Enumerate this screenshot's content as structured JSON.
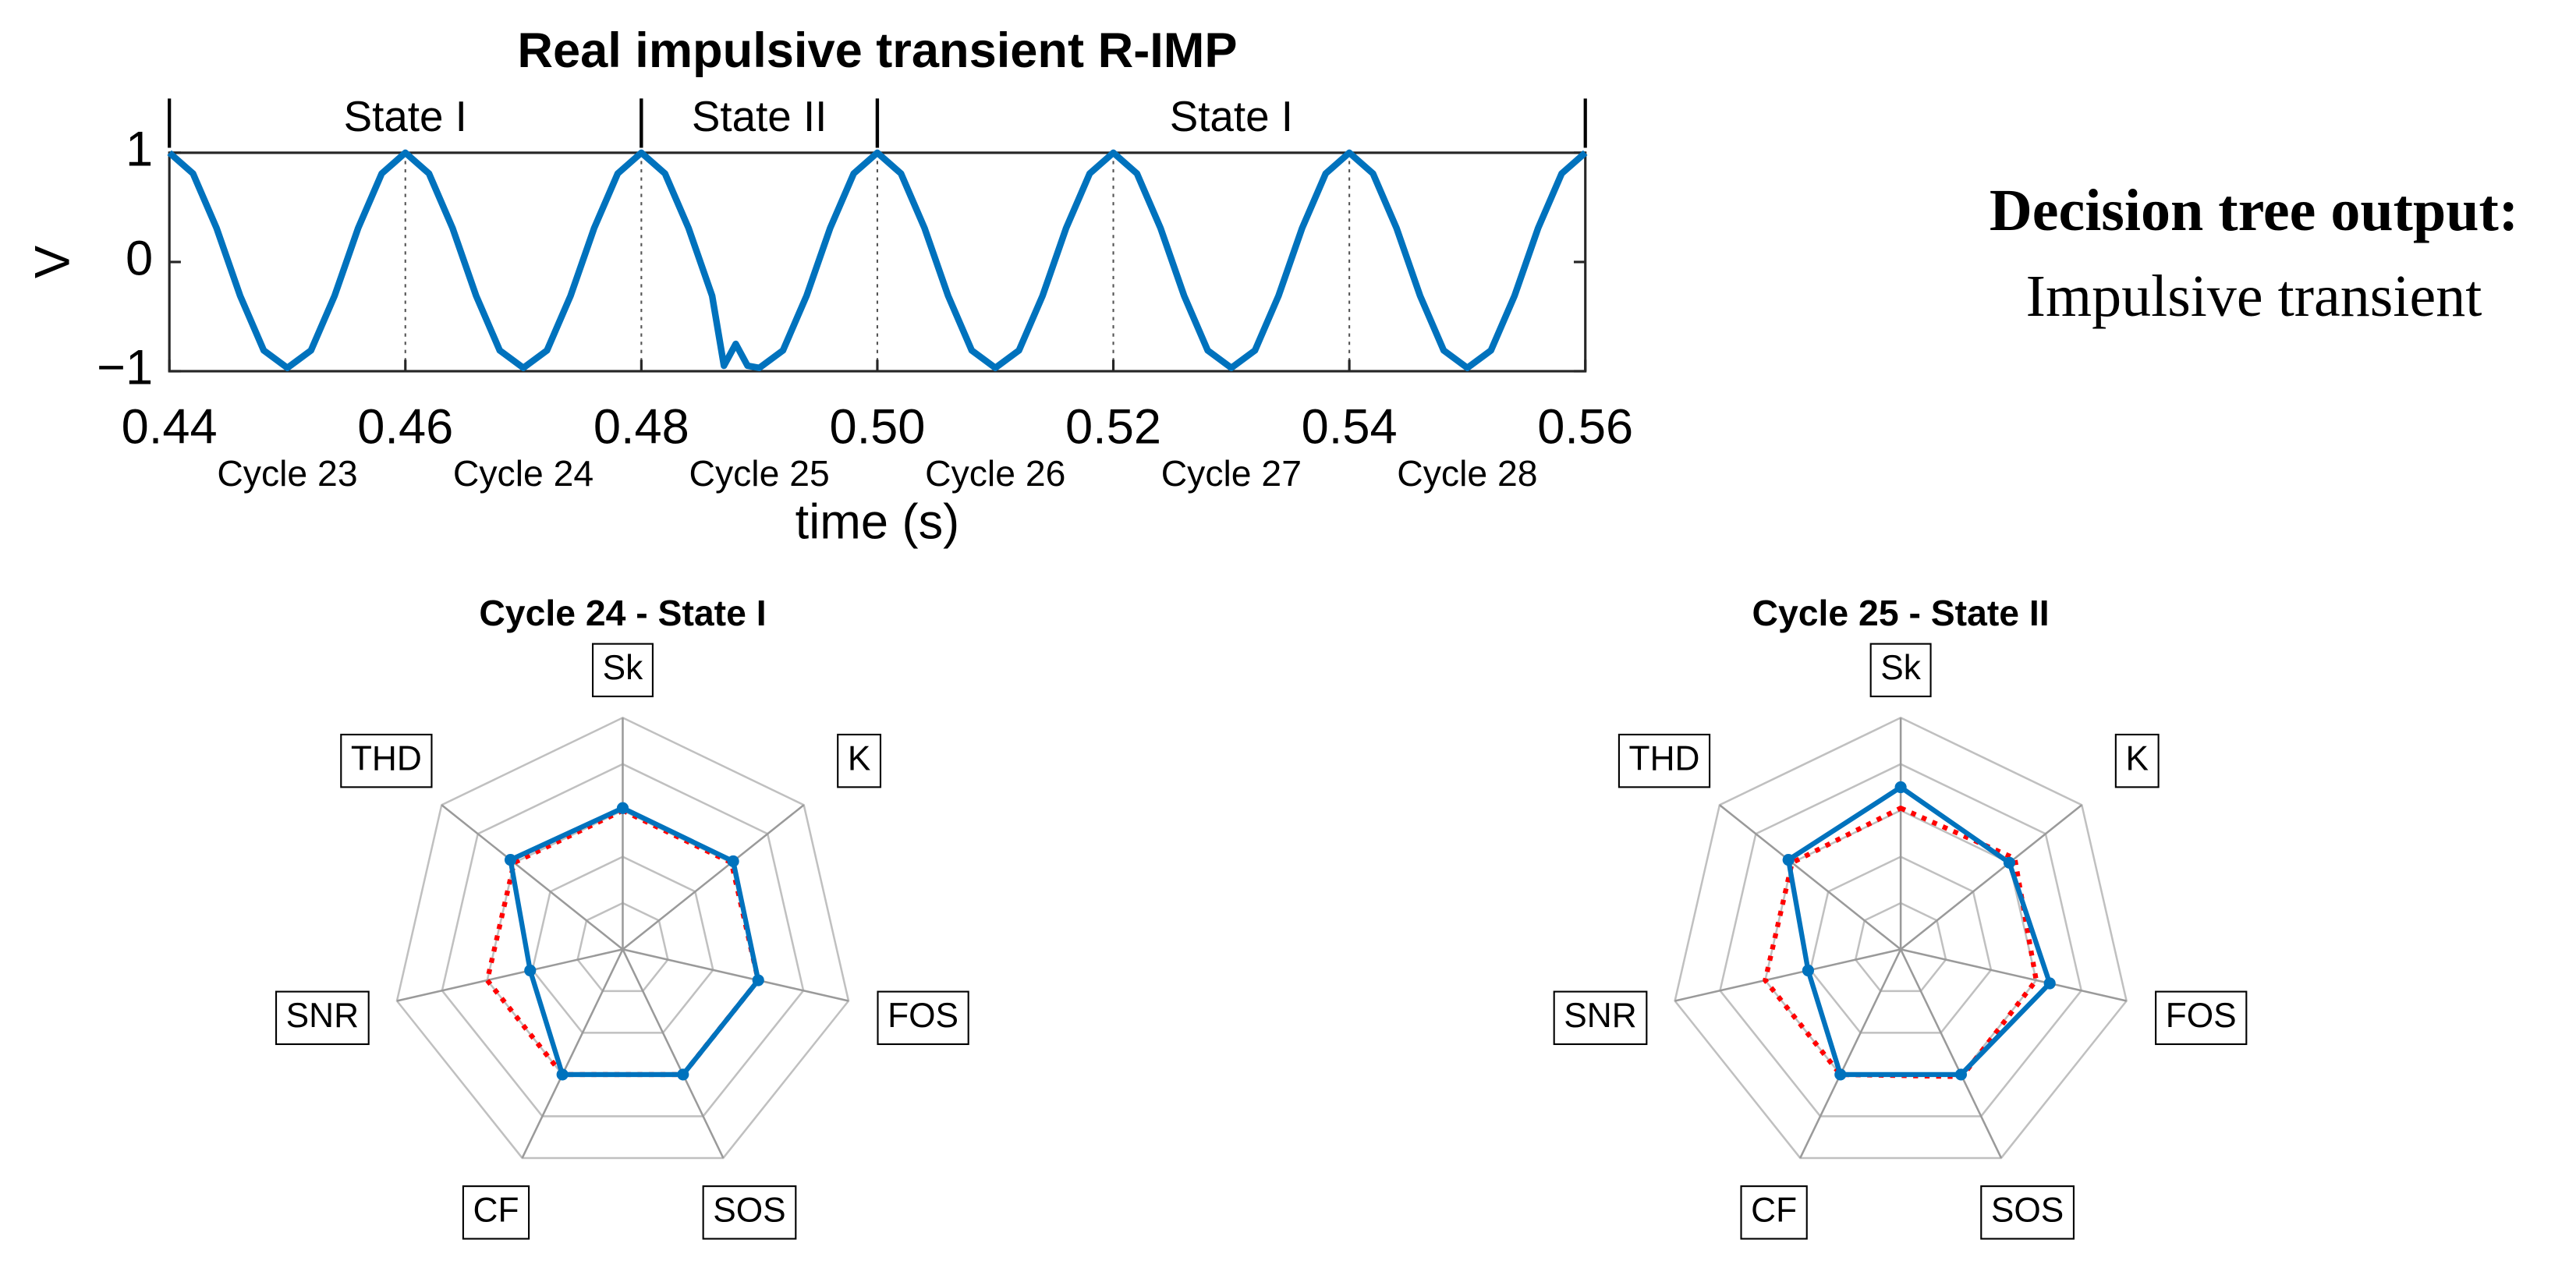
{
  "chart_data": [
    {
      "type": "line",
      "title": "Real impulsive transient R-IMP",
      "x_label": "time (s)",
      "y_label": "V",
      "x": [
        0.44,
        0.442,
        0.444,
        0.446,
        0.448,
        0.45,
        0.452,
        0.454,
        0.456,
        0.458,
        0.46,
        0.462,
        0.464,
        0.466,
        0.468,
        0.47,
        0.472,
        0.474,
        0.476,
        0.478,
        0.48,
        0.482,
        0.484,
        0.486,
        0.487,
        0.488,
        0.489,
        0.49,
        0.492,
        0.494,
        0.496,
        0.498,
        0.5,
        0.502,
        0.504,
        0.506,
        0.508,
        0.51,
        0.512,
        0.514,
        0.516,
        0.518,
        0.52,
        0.522,
        0.524,
        0.526,
        0.528,
        0.53,
        0.532,
        0.534,
        0.536,
        0.538,
        0.54,
        0.542,
        0.544,
        0.546,
        0.548,
        0.55,
        0.552,
        0.554,
        0.556,
        0.558,
        0.56
      ],
      "values": [
        1,
        0.81,
        0.31,
        -0.31,
        -0.81,
        -0.97,
        -0.81,
        -0.31,
        0.31,
        0.81,
        1,
        0.81,
        0.31,
        -0.31,
        -0.81,
        -0.97,
        -0.81,
        -0.31,
        0.31,
        0.81,
        1,
        0.81,
        0.31,
        -0.31,
        -0.95,
        -0.75,
        -0.95,
        -0.97,
        -0.81,
        -0.31,
        0.31,
        0.81,
        1,
        0.81,
        0.31,
        -0.31,
        -0.81,
        -0.97,
        -0.81,
        -0.31,
        0.31,
        0.81,
        1,
        0.81,
        0.31,
        -0.31,
        -0.81,
        -0.97,
        -0.81,
        -0.31,
        0.31,
        0.81,
        1,
        0.81,
        0.31,
        -0.31,
        -0.81,
        -0.97,
        -0.81,
        -0.31,
        0.31,
        0.81,
        1
      ],
      "color": "#0072BD",
      "xlim": [
        0.44,
        0.56
      ],
      "xticks": [
        0.44,
        0.46,
        0.48,
        {
          "value": 0.5,
          "label": "0.50"
        },
        0.52,
        0.54,
        0.56
      ],
      "ylim": [
        -1,
        1
      ],
      "yticks": [
        {
          "value": -1,
          "label": "−1"
        },
        0,
        1
      ],
      "xgrid": true,
      "states": [
        {
          "label": "State I",
          "from": 0.44,
          "to": 0.48
        },
        {
          "label": "State II",
          "from": 0.48,
          "to": 0.5
        },
        {
          "label": "State I",
          "from": 0.5,
          "to": 0.56
        }
      ],
      "cycle_labels": [
        "Cycle 23",
        "Cycle 24",
        "Cycle 25",
        "Cycle 26",
        "Cycle 27",
        "Cycle 28"
      ]
    },
    {
      "type": "radar",
      "title": "Cycle 24 - State I",
      "categories": [
        "Sk",
        "K",
        "FOS",
        "SOS",
        "CF",
        "SNR",
        "THD"
      ],
      "rlim": [
        0,
        1
      ],
      "rticks": [
        0.2,
        0.4,
        0.6,
        0.8,
        1
      ],
      "series": [
        {
          "color": "#FF0000",
          "style": "dotted",
          "values": [
            0.6,
            0.6,
            0.6,
            0.6,
            0.6,
            0.6,
            0.6
          ]
        },
        {
          "color": "#0072BD",
          "style": "solid",
          "values": [
            0.61,
            0.61,
            0.6,
            0.6,
            0.6,
            0.41,
            0.62
          ]
        }
      ]
    },
    {
      "type": "radar",
      "title": "Cycle 25 - State II",
      "categories": [
        "Sk",
        "K",
        "FOS",
        "SOS",
        "CF",
        "SNR",
        "THD"
      ],
      "rlim": [
        0,
        1
      ],
      "rticks": [
        0.2,
        0.4,
        0.6,
        0.8,
        1
      ],
      "series": [
        {
          "color": "#FF0000",
          "style": "dotted",
          "values": [
            0.61,
            0.63,
            0.6,
            0.61,
            0.6,
            0.6,
            0.6
          ]
        },
        {
          "color": "#0072BD",
          "style": "solid",
          "values": [
            0.7,
            0.6,
            0.66,
            0.6,
            0.6,
            0.41,
            0.62
          ]
        }
      ]
    }
  ],
  "decision_tree": {
    "label": "Decision tree output:",
    "text": "Impulsive transient"
  }
}
